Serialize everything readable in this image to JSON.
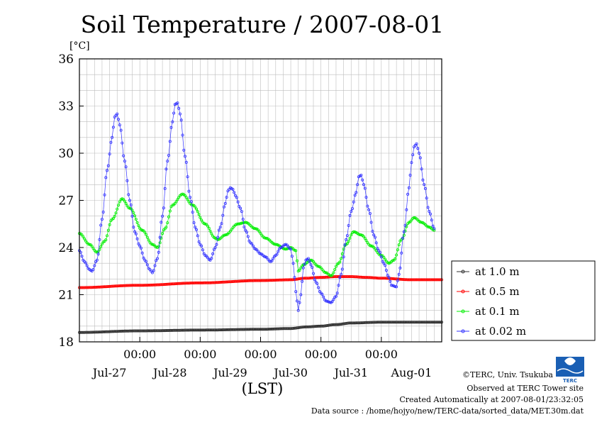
{
  "chart_data": {
    "type": "line",
    "title": "Soil Temperature / 2007-08-01",
    "y_unit": "[°C]",
    "xlabel": "(LST)",
    "ylim": [
      18,
      36
    ],
    "y_ticks": [
      18,
      21,
      24,
      27,
      30,
      33,
      36
    ],
    "x_range_hours": [
      0,
      144
    ],
    "x_tick_labels_time": [
      "00:00",
      "00:00",
      "00:00",
      "00:00",
      "00:00"
    ],
    "x_tick_hours": [
      24,
      48,
      72,
      96,
      120
    ],
    "x_date_labels": [
      "Jul-27",
      "Jul-28",
      "Jul-29",
      "Jul-30",
      "Jul-31",
      "Aug-01"
    ],
    "x_date_label_hours": [
      12,
      36,
      60,
      84,
      108,
      132
    ],
    "grid": true,
    "legend_position": "right",
    "series": [
      {
        "name": "at 1.0 m",
        "color": "#303030",
        "points": [
          [
            0,
            18.6
          ],
          [
            24,
            18.7
          ],
          [
            48,
            18.75
          ],
          [
            72,
            18.8
          ],
          [
            84,
            18.85
          ],
          [
            90,
            18.95
          ],
          [
            96,
            19.0
          ],
          [
            102,
            19.1
          ],
          [
            108,
            19.2
          ],
          [
            120,
            19.25
          ],
          [
            132,
            19.25
          ],
          [
            144,
            19.25
          ]
        ]
      },
      {
        "name": "at 0.5 m",
        "color": "#ff0000",
        "points": [
          [
            0,
            21.45
          ],
          [
            24,
            21.6
          ],
          [
            48,
            21.75
          ],
          [
            72,
            21.9
          ],
          [
            84,
            21.95
          ],
          [
            90,
            22.05
          ],
          [
            96,
            22.1
          ],
          [
            102,
            22.15
          ],
          [
            108,
            22.15
          ],
          [
            114,
            22.1
          ],
          [
            120,
            22.05
          ],
          [
            132,
            21.95
          ],
          [
            144,
            21.95
          ]
        ]
      },
      {
        "name": "at 0.1 m",
        "color": "#00ee00",
        "points": [
          [
            0,
            24.9
          ],
          [
            4,
            24.2
          ],
          [
            7,
            23.7
          ],
          [
            10,
            24.4
          ],
          [
            13,
            25.8
          ],
          [
            17,
            27.1
          ],
          [
            20,
            26.5
          ],
          [
            25,
            25.1
          ],
          [
            29,
            24.2
          ],
          [
            31,
            24.0
          ],
          [
            34,
            25.2
          ],
          [
            37,
            26.7
          ],
          [
            41,
            27.4
          ],
          [
            45,
            26.7
          ],
          [
            50,
            25.5
          ],
          [
            54,
            24.6
          ],
          [
            55,
            24.5
          ],
          [
            58,
            24.8
          ],
          [
            63,
            25.5
          ],
          [
            66,
            25.6
          ],
          [
            70,
            25.2
          ],
          [
            74,
            24.6
          ],
          [
            78,
            24.2
          ],
          [
            82,
            23.9
          ],
          [
            84,
            24.0
          ],
          [
            86,
            23.8
          ],
          [
            87,
            22.5
          ],
          [
            89,
            22.9
          ],
          [
            92,
            23.2
          ],
          [
            95,
            22.8
          ],
          [
            98,
            22.4
          ],
          [
            100,
            22.2
          ],
          [
            103,
            23.0
          ],
          [
            106,
            24.2
          ],
          [
            109,
            25.0
          ],
          [
            112,
            24.8
          ],
          [
            116,
            24.1
          ],
          [
            120,
            23.5
          ],
          [
            123,
            23.0
          ],
          [
            125,
            23.2
          ],
          [
            128,
            24.5
          ],
          [
            131,
            25.6
          ],
          [
            133,
            25.9
          ],
          [
            136,
            25.6
          ],
          [
            139,
            25.3
          ],
          [
            141,
            25.1
          ]
        ]
      },
      {
        "name": "at 0.02 m",
        "color": "#3333ff",
        "points": [
          [
            0,
            23.8
          ],
          [
            2,
            23.1
          ],
          [
            4,
            22.6
          ],
          [
            5,
            22.5
          ],
          [
            7,
            23.2
          ],
          [
            9,
            25.8
          ],
          [
            11,
            28.9
          ],
          [
            13,
            31.0
          ],
          [
            14,
            32.3
          ],
          [
            15,
            32.5
          ],
          [
            16,
            31.8
          ],
          [
            18,
            29.5
          ],
          [
            20,
            27.0
          ],
          [
            22,
            25.0
          ],
          [
            24,
            24.1
          ],
          [
            26,
            23.2
          ],
          [
            28,
            22.6
          ],
          [
            29,
            22.4
          ],
          [
            31,
            23.3
          ],
          [
            33,
            26.0
          ],
          [
            35,
            29.5
          ],
          [
            37,
            32.0
          ],
          [
            38,
            33.1
          ],
          [
            39,
            33.2
          ],
          [
            40,
            32.5
          ],
          [
            42,
            29.8
          ],
          [
            44,
            27.2
          ],
          [
            46,
            25.3
          ],
          [
            48,
            24.2
          ],
          [
            50,
            23.5
          ],
          [
            52,
            23.2
          ],
          [
            54,
            24.0
          ],
          [
            56,
            25.3
          ],
          [
            58,
            26.8
          ],
          [
            59,
            27.6
          ],
          [
            60,
            27.8
          ],
          [
            61,
            27.7
          ],
          [
            62,
            27.3
          ],
          [
            64,
            26.5
          ],
          [
            66,
            25.1
          ],
          [
            68,
            24.3
          ],
          [
            70,
            23.9
          ],
          [
            72,
            23.6
          ],
          [
            74,
            23.4
          ],
          [
            76,
            23.1
          ],
          [
            78,
            23.5
          ],
          [
            80,
            24.0
          ],
          [
            82,
            24.2
          ],
          [
            84,
            23.9
          ],
          [
            85,
            23.0
          ],
          [
            86,
            21.2
          ],
          [
            87,
            20.0
          ],
          [
            88,
            21.0
          ],
          [
            89,
            22.7
          ],
          [
            90,
            23.2
          ],
          [
            91,
            23.3
          ],
          [
            92,
            22.9
          ],
          [
            94,
            21.8
          ],
          [
            96,
            21.1
          ],
          [
            98,
            20.6
          ],
          [
            100,
            20.5
          ],
          [
            102,
            20.9
          ],
          [
            104,
            22.3
          ],
          [
            106,
            24.5
          ],
          [
            108,
            26.3
          ],
          [
            110,
            27.5
          ],
          [
            111,
            28.5
          ],
          [
            112,
            28.6
          ],
          [
            113,
            28.0
          ],
          [
            115,
            26.4
          ],
          [
            117,
            24.8
          ],
          [
            119,
            23.8
          ],
          [
            121,
            23.0
          ],
          [
            123,
            22.1
          ],
          [
            124,
            21.6
          ],
          [
            126,
            21.5
          ],
          [
            127,
            22.3
          ],
          [
            129,
            25.0
          ],
          [
            131,
            27.8
          ],
          [
            132,
            29.4
          ],
          [
            133,
            30.4
          ],
          [
            134,
            30.6
          ],
          [
            135,
            30.0
          ],
          [
            137,
            28.0
          ],
          [
            139,
            26.3
          ],
          [
            141,
            25.2
          ]
        ]
      }
    ]
  },
  "footer": {
    "copyright": "©TERC, Univ. Tsukuba",
    "observed": "Observed at TERC Tower site",
    "created": "Created Automatically at 2007-08-01/23:32:05",
    "source": "Data source : /home/hojyo/new/TERC-data/sorted_data/MET.30m.dat",
    "logo_text": "TERC"
  }
}
